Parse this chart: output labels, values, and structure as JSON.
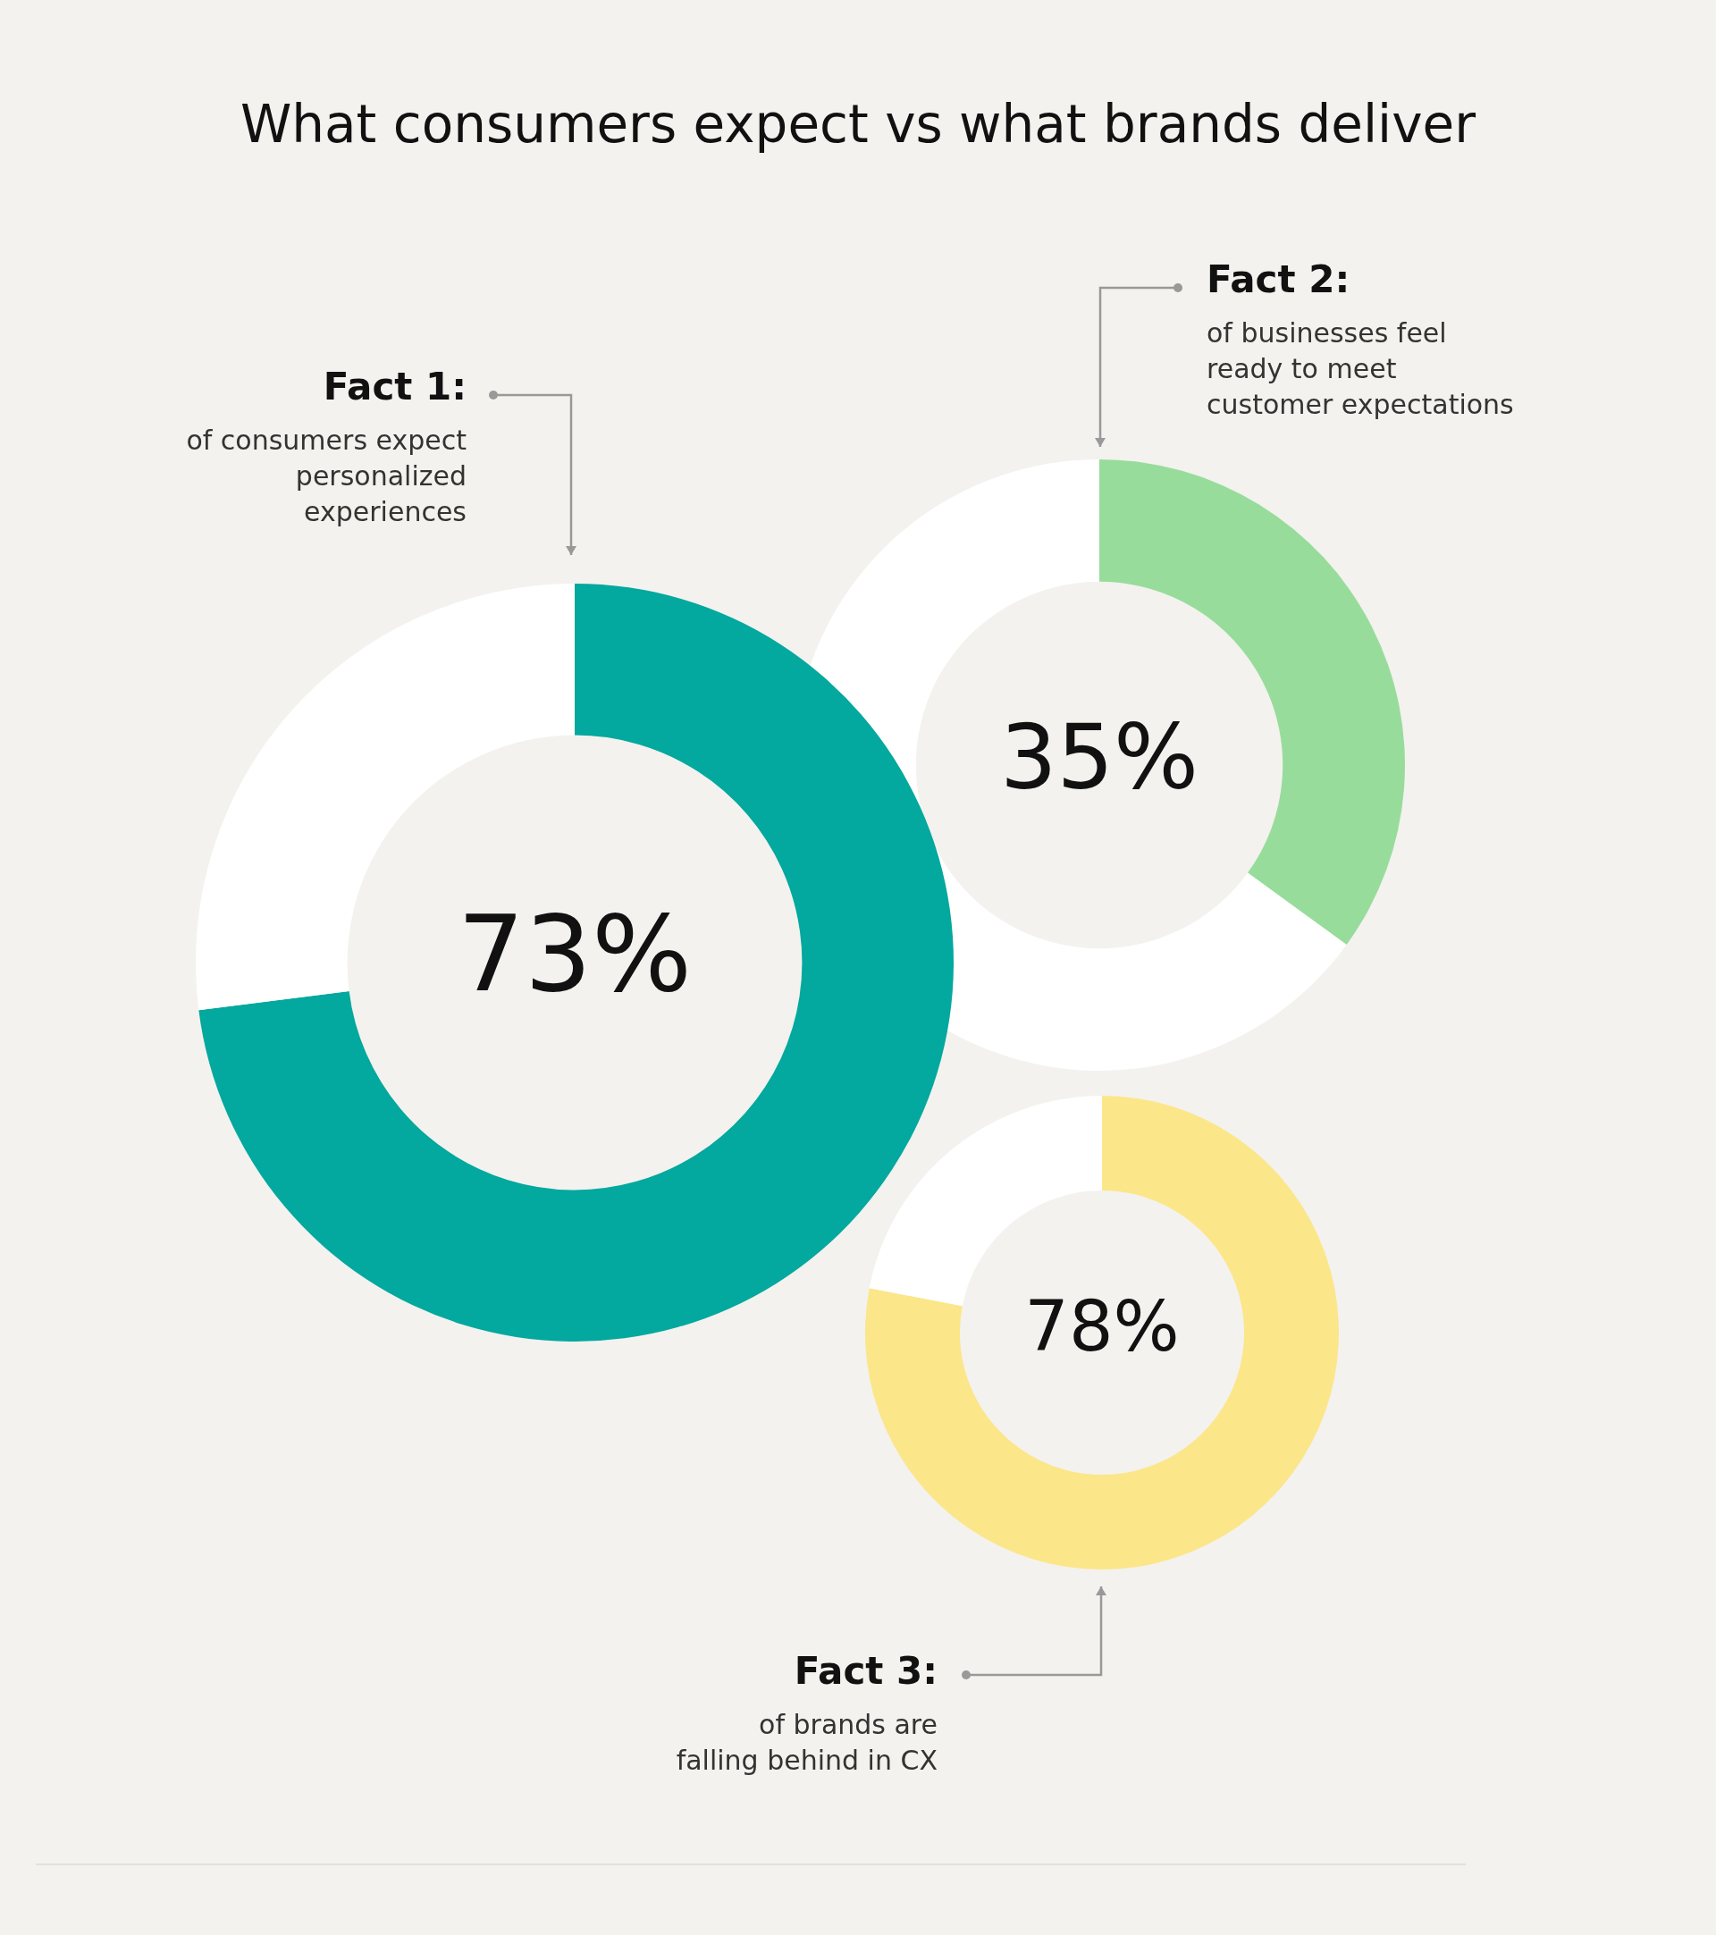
{
  "chart_data": [
    {
      "type": "donut",
      "title": "What consumers expect vs what brands deliver",
      "categories": [
        null,
        null
      ],
      "values": [
        73,
        27
      ],
      "colors": [
        "#03a89e",
        "#ffffff"
      ],
      "value_labels": [
        "73%",
        null
      ],
      "annotations": [
        "Fact 1:",
        "of consumers expect personalized experiences"
      ]
    },
    {
      "type": "donut",
      "categories": [
        null,
        null
      ],
      "values": [
        35,
        65
      ],
      "colors": [
        "#98dc9c",
        "#ffffff"
      ],
      "value_labels": [
        "35%",
        null
      ],
      "annotations": [
        "Fact 2:",
        "of businesses feel ready to meet customer expectations"
      ]
    },
    {
      "type": "donut",
      "categories": [
        null,
        null
      ],
      "values": [
        78,
        22
      ],
      "colors": [
        "#fce68a",
        "#ffffff"
      ],
      "value_labels": [
        "78%",
        null
      ],
      "annotations": [
        "Fact 3:",
        "of brands are falling behind in CX"
      ]
    }
  ]
}
